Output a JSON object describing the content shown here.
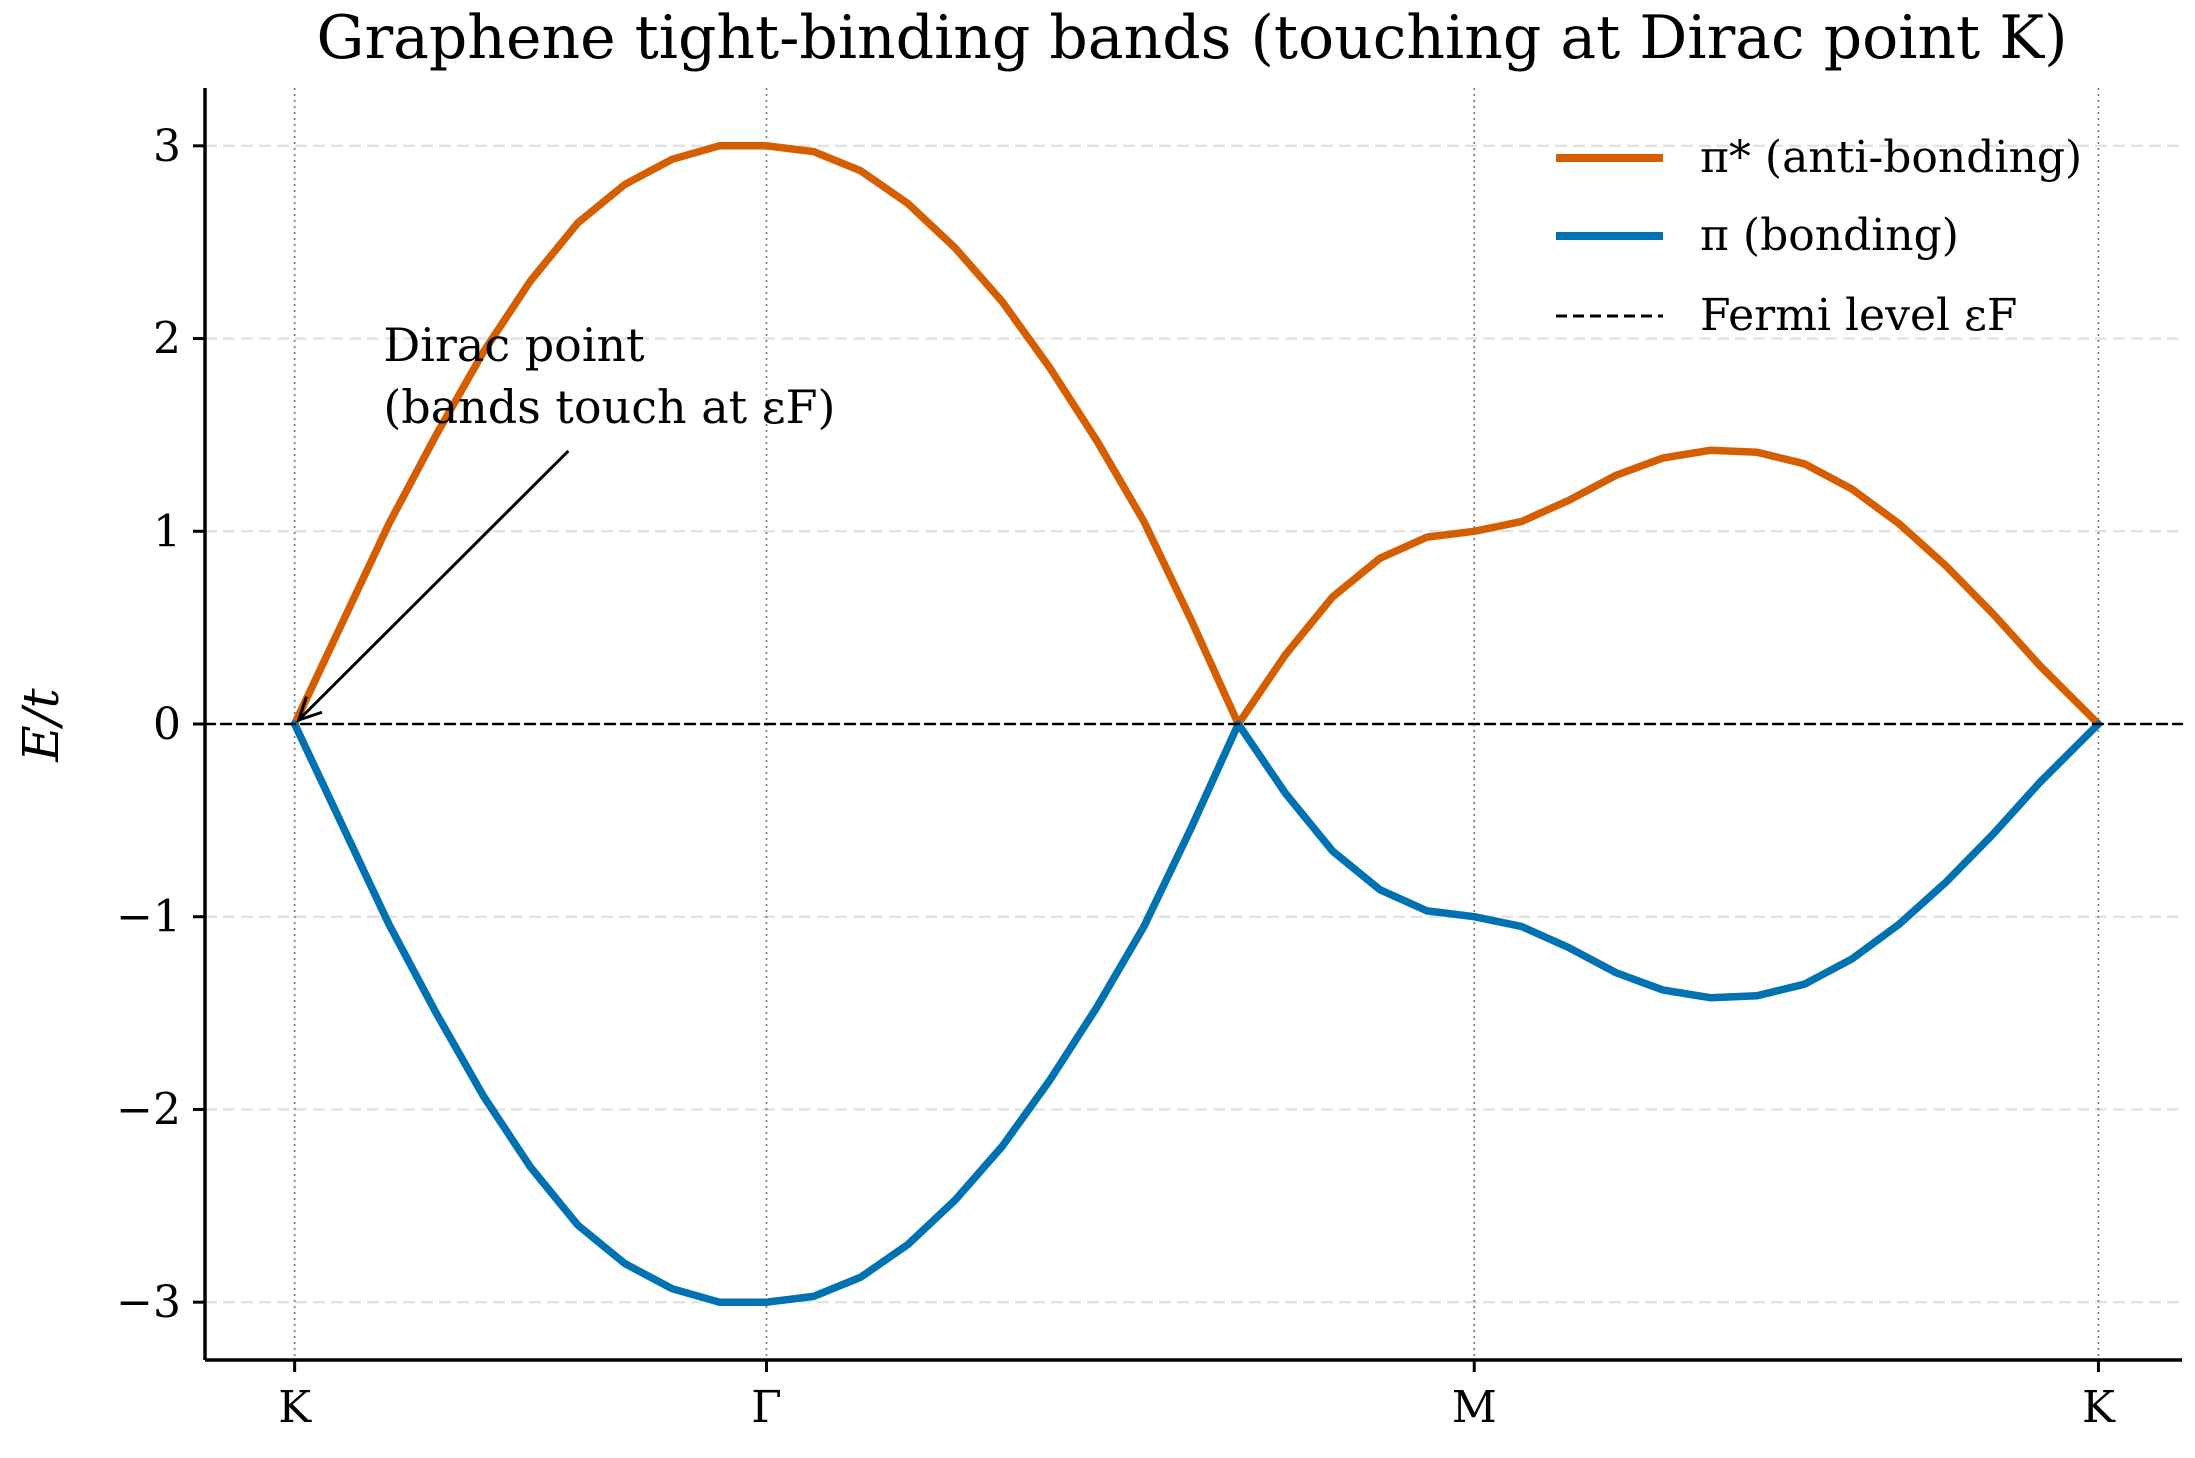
{
  "chart_data": {
    "type": "line",
    "title": "Graphene tight-binding bands (touching at Dirac point K)",
    "xlabel": "",
    "ylabel": "E/t",
    "xticks": [
      {
        "label": "K",
        "x": 0
      },
      {
        "label": "Γ",
        "x": 1
      },
      {
        "label": "M",
        "x": 2.5
      },
      {
        "label": "K",
        "x": 3.8229
      }
    ],
    "xlim": [
      -0.19,
      4.0
    ],
    "ylim": [
      -3.3,
      3.3
    ],
    "yticks": [
      -3,
      -2,
      -1,
      0,
      1,
      2,
      3
    ],
    "ytick_labels": [
      "−3",
      "−2",
      "−1",
      "0",
      "1",
      "2",
      "3"
    ],
    "grid": "y dashed",
    "legend_position": "top-right",
    "series": [
      {
        "name": "π* (anti-bonding)",
        "color": "#d55e00",
        "x": [
          0,
          0.1,
          0.2,
          0.3,
          0.4,
          0.5,
          0.6,
          0.7,
          0.8,
          0.9,
          1.0,
          1.1,
          1.2,
          1.3,
          1.4,
          1.5,
          1.6,
          1.7,
          1.8,
          1.9,
          2.0,
          2.1,
          2.2,
          2.3,
          2.4,
          2.5,
          2.6,
          2.7,
          2.8,
          2.9,
          3.0,
          3.1,
          3.2,
          3.3,
          3.4,
          3.5,
          3.6,
          3.7,
          3.8229
        ],
        "values": [
          0.0,
          0.52,
          1.04,
          1.5,
          1.93,
          2.3,
          2.6,
          2.8,
          2.93,
          3.0,
          3.0,
          2.97,
          2.87,
          2.7,
          2.47,
          2.19,
          1.85,
          1.47,
          1.05,
          0.54,
          0.0,
          0.36,
          0.66,
          0.86,
          0.97,
          1.0,
          1.05,
          1.16,
          1.29,
          1.38,
          1.42,
          1.41,
          1.35,
          1.22,
          1.04,
          0.82,
          0.57,
          0.3,
          0.0
        ]
      },
      {
        "name": "π (bonding)",
        "color": "#0072b2",
        "x": [
          0,
          0.1,
          0.2,
          0.3,
          0.4,
          0.5,
          0.6,
          0.7,
          0.8,
          0.9,
          1.0,
          1.1,
          1.2,
          1.3,
          1.4,
          1.5,
          1.6,
          1.7,
          1.8,
          1.9,
          2.0,
          2.1,
          2.2,
          2.3,
          2.4,
          2.5,
          2.6,
          2.7,
          2.8,
          2.9,
          3.0,
          3.1,
          3.2,
          3.3,
          3.4,
          3.5,
          3.6,
          3.7,
          3.8229
        ],
        "values": [
          0.0,
          -0.52,
          -1.04,
          -1.5,
          -1.93,
          -2.3,
          -2.6,
          -2.8,
          -2.93,
          -3.0,
          -3.0,
          -2.97,
          -2.87,
          -2.7,
          -2.47,
          -2.19,
          -1.85,
          -1.47,
          -1.05,
          -0.54,
          0.0,
          -0.36,
          -0.66,
          -0.86,
          -0.97,
          -1.0,
          -1.05,
          -1.16,
          -1.29,
          -1.38,
          -1.42,
          -1.41,
          -1.35,
          -1.22,
          -1.04,
          -0.82,
          -0.57,
          -0.3,
          0.0
        ]
      },
      {
        "name": "Fermi level εF",
        "color": "#000000",
        "style": "dashed",
        "x": [
          -0.19,
          4.0
        ],
        "values": [
          0,
          0
        ]
      }
    ],
    "annotation": {
      "text_line1": "Dirac point",
      "text_line2": "(bands touch at εF)",
      "target": {
        "x": 0,
        "y": 0
      },
      "text_at": {
        "x": 0.58,
        "y": 1.65
      }
    },
    "legend": {
      "entries": [
        "π* (anti-bonding)",
        "π (bonding)",
        "Fermi level εF"
      ]
    }
  }
}
